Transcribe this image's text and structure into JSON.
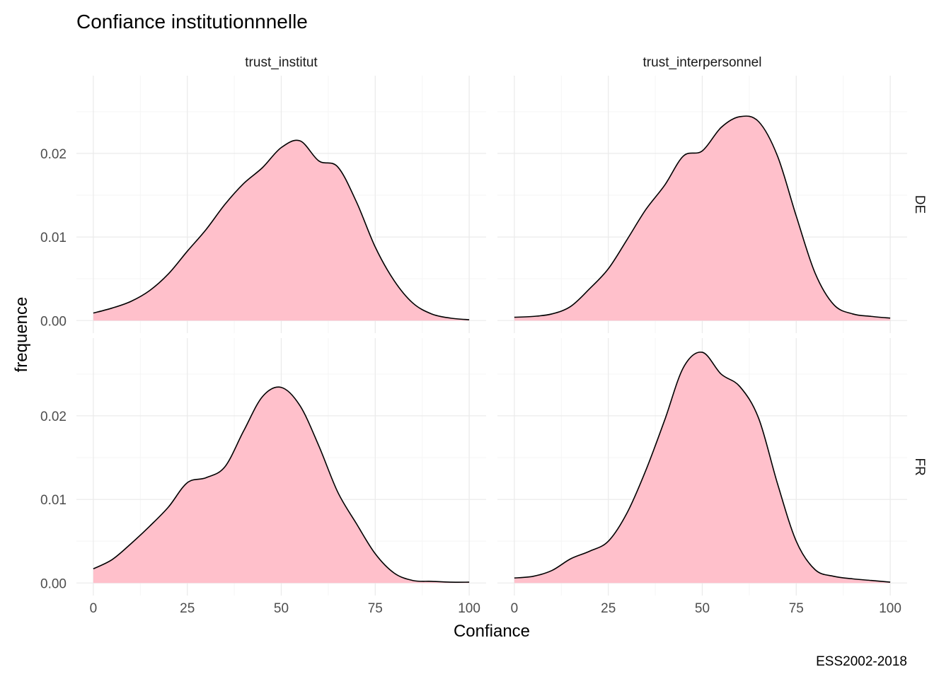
{
  "title": "Confiance institutionnnelle",
  "caption": "ESS2002-2018",
  "colors": {
    "fill": "#ffc0cb",
    "stroke": "#000000",
    "grid_major": "#ebebeb",
    "grid_minor": "#f5f5f5"
  },
  "chart_data": {
    "type": "area",
    "facet_columns": [
      "trust_institut",
      "trust_interpersonnel"
    ],
    "facet_rows": [
      "DE",
      "FR"
    ],
    "xlabel": "Confiance",
    "ylabel": "frequence",
    "xlim": [
      -4.5,
      104.5
    ],
    "x_ticks": [
      0,
      25,
      50,
      75,
      100
    ],
    "x_tick_labels": [
      "0",
      "25",
      "50",
      "75",
      "100"
    ],
    "y_ticks": [
      0,
      0.01,
      0.02
    ],
    "y_tick_labels": [
      "0.00",
      "0.01",
      "0.02"
    ],
    "grid": true,
    "panels": [
      {
        "row": "DE",
        "col": "trust_institut",
        "ylim": [
          -0.0015,
          0.0293
        ],
        "x": [
          0,
          5,
          10,
          15,
          20,
          25,
          30,
          35,
          40,
          45,
          50,
          55,
          60,
          65,
          70,
          75,
          80,
          85,
          90,
          95,
          100
        ],
        "y": [
          0.0009,
          0.0015,
          0.0023,
          0.0036,
          0.0056,
          0.0083,
          0.0109,
          0.0139,
          0.0164,
          0.0183,
          0.0207,
          0.0215,
          0.0191,
          0.0184,
          0.0142,
          0.0088,
          0.0048,
          0.0021,
          0.0008,
          0.0003,
          0.0001
        ]
      },
      {
        "row": "DE",
        "col": "trust_interpersonnel",
        "ylim": [
          -0.0015,
          0.0293
        ],
        "x": [
          0,
          5,
          10,
          15,
          20,
          25,
          30,
          35,
          40,
          45,
          50,
          55,
          60,
          65,
          70,
          75,
          80,
          85,
          90,
          95,
          100
        ],
        "y": [
          0.0004,
          0.0005,
          0.0008,
          0.0017,
          0.0038,
          0.0062,
          0.0097,
          0.0133,
          0.0162,
          0.0197,
          0.0203,
          0.0231,
          0.0244,
          0.0238,
          0.0197,
          0.0125,
          0.0057,
          0.0019,
          0.0008,
          0.0005,
          0.0003
        ]
      },
      {
        "row": "FR",
        "col": "trust_institut",
        "ylim": [
          -0.0015,
          0.0293
        ],
        "x": [
          0,
          5,
          10,
          15,
          20,
          25,
          30,
          35,
          40,
          45,
          50,
          55,
          60,
          65,
          70,
          75,
          80,
          85,
          90,
          95,
          100
        ],
        "y": [
          0.0017,
          0.0028,
          0.0047,
          0.0068,
          0.0091,
          0.012,
          0.0126,
          0.0139,
          0.0182,
          0.0223,
          0.0234,
          0.0212,
          0.0164,
          0.0109,
          0.0071,
          0.0035,
          0.0012,
          0.0003,
          0.0002,
          0.0001,
          0.0001
        ]
      },
      {
        "row": "FR",
        "col": "trust_interpersonnel",
        "ylim": [
          -0.0015,
          0.0293
        ],
        "x": [
          0,
          5,
          10,
          15,
          20,
          25,
          30,
          35,
          40,
          45,
          50,
          55,
          60,
          65,
          70,
          75,
          80,
          85,
          90,
          95,
          100
        ],
        "y": [
          0.0006,
          0.0008,
          0.0015,
          0.0029,
          0.0038,
          0.005,
          0.0084,
          0.0135,
          0.0195,
          0.0258,
          0.0276,
          0.025,
          0.0235,
          0.0197,
          0.0119,
          0.005,
          0.0016,
          0.0008,
          0.0005,
          0.0003,
          0.0001
        ]
      }
    ]
  }
}
